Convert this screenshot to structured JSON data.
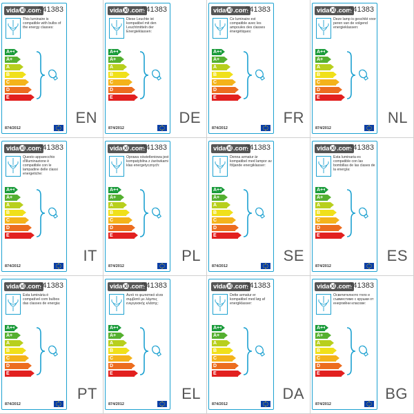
{
  "brand": {
    "prefix": "vida",
    "ball": "xl",
    "suffix": ".com"
  },
  "product_code": "241383",
  "regulation": "874/2012",
  "energy_classes": [
    {
      "label": "A++",
      "color": "#1a9b3a"
    },
    {
      "label": "A+",
      "color": "#55b030"
    },
    {
      "label": "A",
      "color": "#b8cf1d"
    },
    {
      "label": "B",
      "color": "#f0e01a"
    },
    {
      "label": "C",
      "color": "#f4b31b"
    },
    {
      "label": "D",
      "color": "#ec6d1f"
    },
    {
      "label": "E",
      "color": "#e2201f"
    }
  ],
  "labels": [
    {
      "lang": "EN",
      "text": "This luminaire is compatible with bulbs of the energy classes:"
    },
    {
      "lang": "DE",
      "text": "Diese Leuchte ist kompatibel mit den Leuchtmitteln der Energieklassen:"
    },
    {
      "lang": "FR",
      "text": "Ce luminaire est compatible avec les ampoules des classes énergétiques:"
    },
    {
      "lang": "NL",
      "text": "Deze lamp is geschikt voor peren van de volgend energieklassen:"
    },
    {
      "lang": "IT",
      "text": "Questo apparecchio d'illuminazione è compatibile con le lampadine delle classi energetiche:"
    },
    {
      "lang": "PL",
      "text": "Oprawa oświetleniowa jest kompatybilna z żarówkami klas energetycznych:"
    },
    {
      "lang": "SE",
      "text": "Denna armatur är kompatibel med lampor av följande energiklasser:"
    },
    {
      "lang": "ES",
      "text": "Esta luminaria es compatible con las bombillas de las clases de la energía:"
    },
    {
      "lang": "PT",
      "text": "Esta luminária é compatível com bulbos das classes de energia:"
    },
    {
      "lang": "EL",
      "text": "Αυτό το φωτιστικό είναι συμβατό με λάμπες ενεργειακής κλάσης:"
    },
    {
      "lang": "DA",
      "text": "Dette armatur er kompatibel med løg af energiklasser:"
    },
    {
      "lang": "BG",
      "text": "Осветителното тяло е съвместимо с крушки от енергийни класове:"
    }
  ]
}
